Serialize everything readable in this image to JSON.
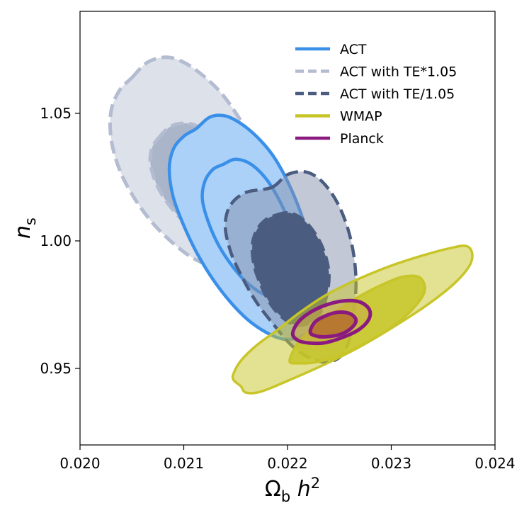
{
  "chart_data": {
    "type": "contour",
    "title": "",
    "xlabel": "Ω_b h^2",
    "ylabel": "n_s",
    "xlim": [
      0.02,
      0.024
    ],
    "ylim": [
      0.92,
      1.09
    ],
    "x_ticks": [
      0.02,
      0.021,
      0.022,
      0.023,
      0.024
    ],
    "x_tick_labels": [
      "0.020",
      "0.021",
      "0.022",
      "0.023",
      "0.024"
    ],
    "y_ticks": [
      0.95,
      1.0,
      1.05
    ],
    "y_tick_labels": [
      "0.95",
      "1.00",
      "1.05"
    ],
    "legend_position": "top-right",
    "series": [
      {
        "name": "ACT",
        "color": "#3a8fe8",
        "line_style": "solid",
        "regions": [
          {
            "level": "95%",
            "points": [
              [
                0.02112,
                1.044
              ],
              [
                0.02125,
                1.0485
              ],
              [
                0.0214,
                1.049
              ],
              [
                0.02155,
                1.046
              ],
              [
                0.0217,
                1.041
              ],
              [
                0.02185,
                1.034
              ],
              [
                0.02198,
                1.025
              ],
              [
                0.0221,
                1.014
              ],
              [
                0.0222,
                1.002
              ],
              [
                0.02228,
                0.991
              ],
              [
                0.02232,
                0.98
              ],
              [
                0.0223,
                0.971
              ],
              [
                0.02222,
                0.965
              ],
              [
                0.0221,
                0.962
              ],
              [
                0.02196,
                0.9615
              ],
              [
                0.0218,
                0.964
              ],
              [
                0.02162,
                0.969
              ],
              [
                0.02145,
                0.976
              ],
              [
                0.02128,
                0.985
              ],
              [
                0.02113,
                0.995
              ],
              [
                0.021,
                1.006
              ],
              [
                0.0209,
                1.017
              ],
              [
                0.02086,
                1.028
              ],
              [
                0.0209,
                1.036
              ],
              [
                0.021,
                1.041
              ]
            ]
          },
          {
            "level": "68%",
            "points": [
              [
                0.02138,
                1.03
              ],
              [
                0.0215,
                1.032
              ],
              [
                0.02165,
                1.03
              ],
              [
                0.0218,
                1.024
              ],
              [
                0.02192,
                1.016
              ],
              [
                0.02202,
                1.007
              ],
              [
                0.0221,
                0.998
              ],
              [
                0.02214,
                0.99
              ],
              [
                0.02212,
                0.983
              ],
              [
                0.02204,
                0.9785
              ],
              [
                0.0219,
                0.9775
              ],
              [
                0.02175,
                0.9795
              ],
              [
                0.0216,
                0.984
              ],
              [
                0.02147,
                0.99
              ],
              [
                0.02134,
                0.998
              ],
              [
                0.02124,
                1.007
              ],
              [
                0.02118,
                1.016
              ],
              [
                0.0212,
                1.023
              ],
              [
                0.02128,
                1.028
              ]
            ]
          }
        ]
      },
      {
        "name": "ACT with TE*1.05",
        "color": "#b3bcd1",
        "line_style": "dashed",
        "regions": [
          {
            "level": "95%",
            "points": [
              [
                0.0205,
                1.064
              ],
              [
                0.02065,
                1.07
              ],
              [
                0.02083,
                1.072
              ],
              [
                0.021,
                1.07
              ],
              [
                0.02118,
                1.065
              ],
              [
                0.02136,
                1.058
              ],
              [
                0.02152,
                1.049
              ],
              [
                0.02166,
                1.039
              ],
              [
                0.02175,
                1.028
              ],
              [
                0.02178,
                1.016
              ],
              [
                0.02174,
                1.005
              ],
              [
                0.02165,
                0.996
              ],
              [
                0.0215,
                0.991
              ],
              [
                0.0213,
                0.99
              ],
              [
                0.0211,
                0.993
              ],
              [
                0.0209,
                0.999
              ],
              [
                0.0207,
                1.007
              ],
              [
                0.02052,
                1.017
              ],
              [
                0.02038,
                1.028
              ],
              [
                0.0203,
                1.04
              ],
              [
                0.0203,
                1.051
              ],
              [
                0.02038,
                1.059
              ]
            ]
          },
          {
            "level": "68%",
            "points": [
              [
                0.02075,
                1.04
              ],
              [
                0.02088,
                1.045
              ],
              [
                0.02105,
                1.046
              ],
              [
                0.02122,
                1.043
              ],
              [
                0.02138,
                1.037
              ],
              [
                0.0215,
                1.029
              ],
              [
                0.02157,
                1.02
              ],
              [
                0.02157,
                1.011
              ],
              [
                0.0215,
                1.005
              ],
              [
                0.02137,
                1.002
              ],
              [
                0.0212,
                1.003
              ],
              [
                0.02102,
                1.007
              ],
              [
                0.02086,
                1.014
              ],
              [
                0.02074,
                1.022
              ],
              [
                0.02068,
                1.03
              ],
              [
                0.02069,
                1.036
              ]
            ]
          }
        ]
      },
      {
        "name": "ACT with TE/1.05",
        "color": "#4a5c7f",
        "line_style": "dashed",
        "regions": [
          {
            "level": "95%",
            "points": [
              [
                0.02185,
                1.021
              ],
              [
                0.022,
                1.026
              ],
              [
                0.02218,
                1.027
              ],
              [
                0.02234,
                1.023
              ],
              [
                0.02248,
                1.015
              ],
              [
                0.02258,
                1.005
              ],
              [
                0.02264,
                0.994
              ],
              [
                0.02266,
                0.983
              ],
              [
                0.02264,
                0.972
              ],
              [
                0.0226,
                0.962
              ],
              [
                0.02252,
                0.955
              ],
              [
                0.02238,
                0.9525
              ],
              [
                0.02222,
                0.954
              ],
              [
                0.02204,
                0.959
              ],
              [
                0.02187,
                0.967
              ],
              [
                0.0217,
                0.976
              ],
              [
                0.02156,
                0.986
              ],
              [
                0.02145,
                0.996
              ],
              [
                0.0214,
                1.006
              ],
              [
                0.02145,
                1.014
              ],
              [
                0.0216,
                1.019
              ]
            ]
          },
          {
            "level": "68%",
            "points": [
              [
                0.02188,
                1.01
              ],
              [
                0.02202,
                1.011
              ],
              [
                0.02216,
                1.008
              ],
              [
                0.02228,
                1.002
              ],
              [
                0.02236,
                0.995
              ],
              [
                0.0224,
                0.987
              ],
              [
                0.02238,
                0.979
              ],
              [
                0.02232,
                0.972
              ],
              [
                0.02222,
                0.968
              ],
              [
                0.02208,
                0.967
              ],
              [
                0.02195,
                0.97
              ],
              [
                0.02184,
                0.975
              ],
              [
                0.02175,
                0.982
              ],
              [
                0.02168,
                0.99
              ],
              [
                0.02166,
                0.998
              ],
              [
                0.0217,
                1.004
              ],
              [
                0.02178,
                1.008
              ]
            ]
          }
        ]
      },
      {
        "name": "WMAP",
        "color": "#c7c528",
        "line_style": "solid",
        "regions": [
          {
            "level": "95%",
            "points": [
              [
                0.02148,
                0.948
              ],
              [
                0.02155,
                0.953
              ],
              [
                0.0217,
                0.959
              ],
              [
                0.0219,
                0.965
              ],
              [
                0.02212,
                0.972
              ],
              [
                0.02238,
                0.979
              ],
              [
                0.02268,
                0.985
              ],
              [
                0.02298,
                0.99
              ],
              [
                0.02328,
                0.994
              ],
              [
                0.02355,
                0.997
              ],
              [
                0.02372,
                0.998
              ],
              [
                0.02378,
                0.995
              ],
              [
                0.02375,
                0.99
              ],
              [
                0.0236,
                0.983
              ],
              [
                0.02335,
                0.975
              ],
              [
                0.02305,
                0.967
              ],
              [
                0.02272,
                0.959
              ],
              [
                0.02238,
                0.952
              ],
              [
                0.02205,
                0.946
              ],
              [
                0.02175,
                0.941
              ],
              [
                0.0216,
                0.9405
              ],
              [
                0.02155,
                0.943
              ],
              [
                0.02148,
                0.9455
              ]
            ]
          },
          {
            "level": "68%",
            "points": [
              [
                0.02202,
                0.953
              ],
              [
                0.0221,
                0.96
              ],
              [
                0.02225,
                0.966
              ],
              [
                0.02245,
                0.972
              ],
              [
                0.02268,
                0.978
              ],
              [
                0.02292,
                0.983
              ],
              [
                0.02312,
                0.986
              ],
              [
                0.02328,
                0.9855
              ],
              [
                0.02332,
                0.98
              ],
              [
                0.0232,
                0.973
              ],
              [
                0.023,
                0.966
              ],
              [
                0.02275,
                0.96
              ],
              [
                0.0225,
                0.955
              ],
              [
                0.02228,
                0.9525
              ],
              [
                0.0221,
                0.952
              ]
            ]
          }
        ]
      },
      {
        "name": "Planck",
        "color": "#8a1a80",
        "line_style": "solid",
        "regions": [
          {
            "level": "95%",
            "points": [
              [
                0.02205,
                0.9635
              ],
              [
                0.0221,
                0.968
              ],
              [
                0.02222,
                0.972
              ],
              [
                0.02238,
                0.975
              ],
              [
                0.02255,
                0.9765
              ],
              [
                0.0227,
                0.976
              ],
              [
                0.02279,
                0.973
              ],
              [
                0.02278,
                0.969
              ],
              [
                0.02268,
                0.965
              ],
              [
                0.02252,
                0.962
              ],
              [
                0.02235,
                0.96
              ],
              [
                0.0222,
                0.96
              ],
              [
                0.0221,
                0.961
              ]
            ]
          },
          {
            "level": "68%",
            "points": [
              [
                0.02222,
                0.964
              ],
              [
                0.02226,
                0.968
              ],
              [
                0.02236,
                0.9705
              ],
              [
                0.02248,
                0.972
              ],
              [
                0.0226,
                0.9715
              ],
              [
                0.02266,
                0.969
              ],
              [
                0.02262,
                0.966
              ],
              [
                0.02252,
                0.9635
              ],
              [
                0.0224,
                0.9625
              ],
              [
                0.0223,
                0.9625
              ]
            ]
          }
        ]
      }
    ]
  }
}
